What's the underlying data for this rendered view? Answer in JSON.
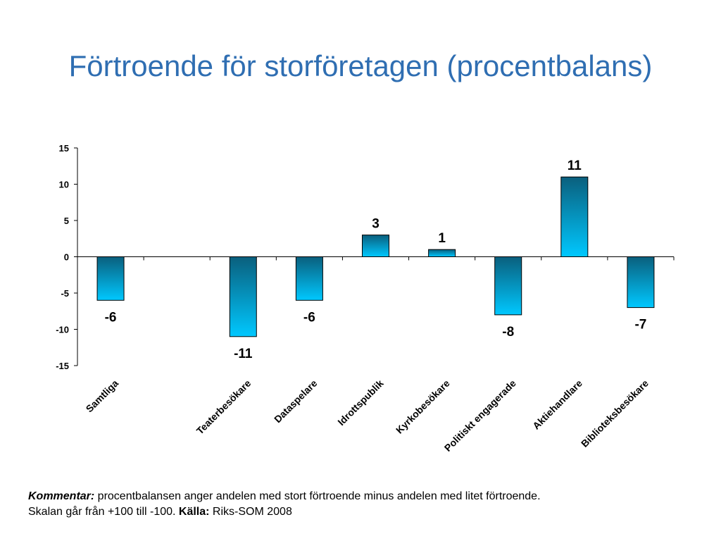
{
  "title": "Förtroende för storföretagen (procentbalans)",
  "chart_data": {
    "type": "bar",
    "categories": [
      "Samtliga",
      "",
      "Teaterbesökare",
      "Dataspelare",
      "Idrottspublik",
      "Kyrkobesökare",
      "Politiskt engagerade",
      "Aktiehandlare",
      "Biblioteksbesökare"
    ],
    "values": [
      -6,
      null,
      -11,
      -6,
      3,
      1,
      -8,
      11,
      -7
    ],
    "ylim": [
      -15,
      15
    ],
    "yticks": [
      15,
      10,
      5,
      0,
      -5,
      -10,
      -15
    ],
    "bar_color_top": "#0a5f7d",
    "bar_color_bottom": "#00c8ff",
    "grid": false,
    "legend": "none"
  },
  "comment": {
    "label": "Kommentar:",
    "text1": " procentbalansen anger andelen med stort förtroende minus andelen med litet förtroende.",
    "text2": "Skalan går från +100 till -100. ",
    "source_label": "Källa:",
    "source": " Riks-SOM 2008"
  }
}
